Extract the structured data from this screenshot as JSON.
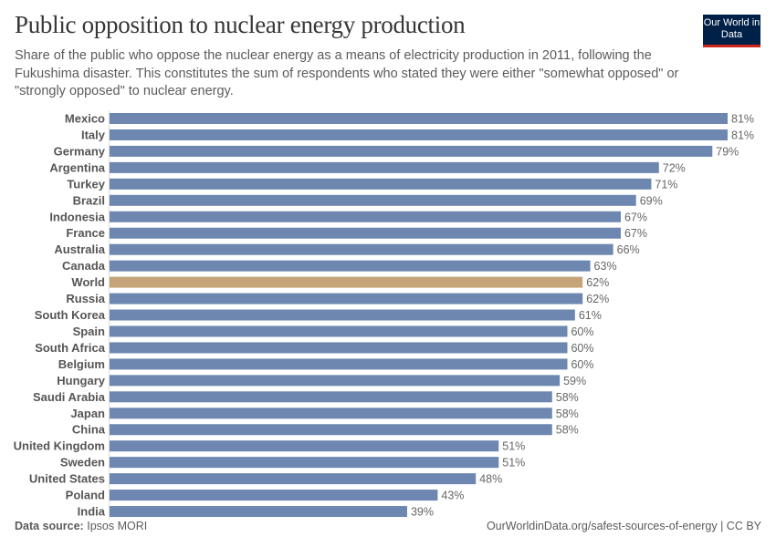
{
  "header": {
    "title": "Public opposition to nuclear energy production",
    "subtitle": "Share of the public who oppose the nuclear energy as a means of electricity production in 2011, following the Fukushima disaster. This constitutes the sum of respondents who stated they were either \"somewhat opposed\" or \"strongly opposed\" to nuclear energy.",
    "logo": "Our World in Data"
  },
  "footer": {
    "source_label": "Data source:",
    "source": "Ipsos MORI",
    "url": "OurWorldinData.org/safest-sources-of-energy | CC BY"
  },
  "colors": {
    "bar": "#6d87b0",
    "highlight": "#c4a478",
    "logo_bg": "#002147",
    "logo_accent": "#ce261e"
  },
  "chart_data": {
    "type": "bar",
    "orientation": "horizontal",
    "unit": "%",
    "categories": [
      "Mexico",
      "Italy",
      "Germany",
      "Argentina",
      "Turkey",
      "Brazil",
      "Indonesia",
      "France",
      "Australia",
      "Canada",
      "World",
      "Russia",
      "South Korea",
      "Spain",
      "South Africa",
      "Belgium",
      "Hungary",
      "Saudi Arabia",
      "Japan",
      "China",
      "United Kingdom",
      "Sweden",
      "United States",
      "Poland",
      "India"
    ],
    "values": [
      81,
      81,
      79,
      72,
      71,
      69,
      67,
      67,
      66,
      63,
      62,
      62,
      61,
      60,
      60,
      60,
      59,
      58,
      58,
      58,
      51,
      51,
      48,
      43,
      39
    ],
    "highlighted": [
      "World"
    ],
    "xlim": [
      0,
      81
    ]
  }
}
